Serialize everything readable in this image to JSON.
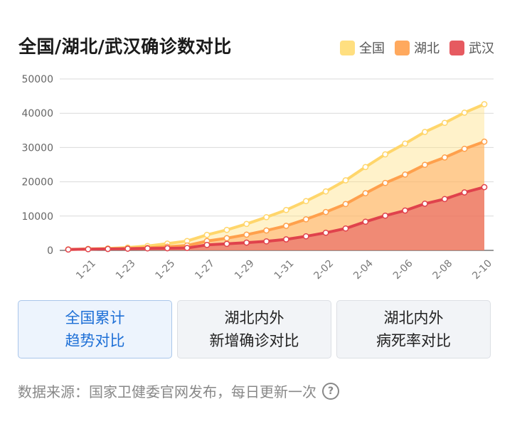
{
  "title": "全国/湖北/武汉确诊数对比",
  "legend": [
    {
      "label": "全国",
      "color": "#ffdf80"
    },
    {
      "label": "湖北",
      "color": "#ffa95e"
    },
    {
      "label": "武汉",
      "color": "#e65a60"
    }
  ],
  "chart_data": {
    "type": "area",
    "stacked": false,
    "x": [
      "1-20",
      "1-21",
      "1-22",
      "1-23",
      "1-24",
      "1-25",
      "1-26",
      "1-27",
      "1-28",
      "1-29",
      "1-30",
      "1-31",
      "2-01",
      "2-02",
      "2-03",
      "2-04",
      "2-05",
      "2-06",
      "2-07",
      "2-08",
      "2-09",
      "2-10"
    ],
    "x_tick_labels": [
      "1-21",
      "1-23",
      "1-25",
      "1-27",
      "1-29",
      "1-31",
      "2-02",
      "2-04",
      "2-06",
      "2-08",
      "2-10"
    ],
    "ylim": [
      0,
      50000
    ],
    "y_ticks": [
      "0",
      "10000",
      "20000",
      "30000",
      "40000",
      "50000"
    ],
    "grid": true,
    "series": [
      {
        "name": "全国",
        "color": "#ffdf80",
        "values": [
          291,
          440,
          571,
          830,
          1287,
          1975,
          2744,
          4515,
          5974,
          7711,
          9692,
          11791,
          14380,
          17205,
          20438,
          24324,
          28018,
          31161,
          34546,
          37198,
          40171,
          42638
        ]
      },
      {
        "name": "湖北",
        "color": "#ffa95e",
        "values": [
          270,
          375,
          444,
          549,
          729,
          1052,
          1423,
          2714,
          3554,
          4586,
          5806,
          7153,
          9074,
          11177,
          13522,
          16678,
          19665,
          22112,
          24953,
          27100,
          29631,
          31728
        ]
      },
      {
        "name": "武汉",
        "color": "#e65a60",
        "values": [
          258,
          363,
          425,
          495,
          572,
          618,
          698,
          1590,
          1905,
          2261,
          2639,
          3215,
          4109,
          5142,
          6384,
          8351,
          10117,
          11618,
          13603,
          14982,
          16902,
          18454
        ]
      }
    ]
  },
  "tabs": [
    {
      "line1": "全国累计",
      "line2": "趋势对比"
    },
    {
      "line1": "湖北内外",
      "line2": "新增确诊对比"
    },
    {
      "line1": "湖北内外",
      "line2": "病死率对比"
    }
  ],
  "footer": {
    "text": "数据来源：国家卫健委官网发布，每日更新一次",
    "icon": "?"
  }
}
